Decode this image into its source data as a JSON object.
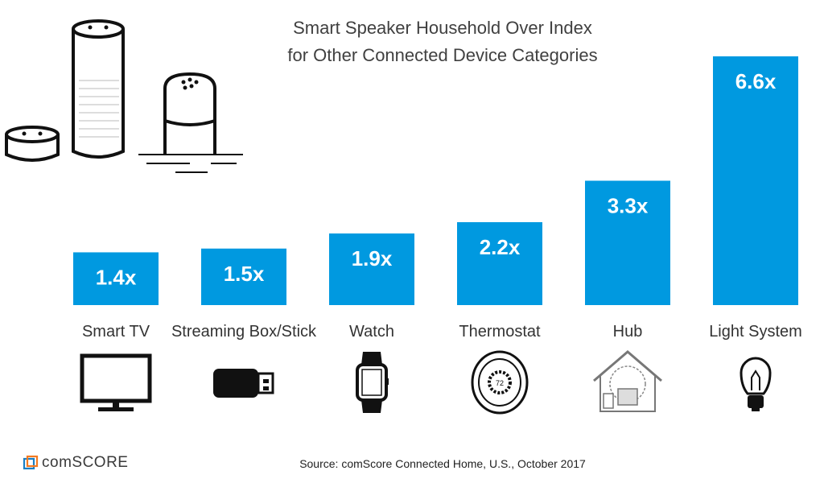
{
  "chart_data": {
    "type": "bar",
    "title_lines": [
      "Smart Speaker Household Over Index",
      "for Other Connected Device Categories"
    ],
    "categories": [
      "Smart TV",
      "Streaming Box/Stick",
      "Watch",
      "Thermostat",
      "Hub",
      "Light System"
    ],
    "values": [
      1.4,
      1.5,
      1.9,
      2.2,
      3.3,
      6.6
    ],
    "value_labels": [
      "1.4x",
      "1.5x",
      "1.9x",
      "2.2x",
      "3.3x",
      "6.6x"
    ],
    "bar_color": "#0099e0",
    "label_color": "#ffffff",
    "grid": false,
    "legend": "none"
  },
  "category_icons": [
    "tv-icon",
    "usb-stick-icon",
    "smartwatch-icon",
    "thermostat-icon",
    "smart-home-hub-icon",
    "light-bulb-icon"
  ],
  "illustration": "smart-speakers-icon",
  "footer": {
    "source": "Source: comScore Connected Home, U.S., October 2017",
    "brand": "comSCORE",
    "brand_color": "#f47a20"
  }
}
